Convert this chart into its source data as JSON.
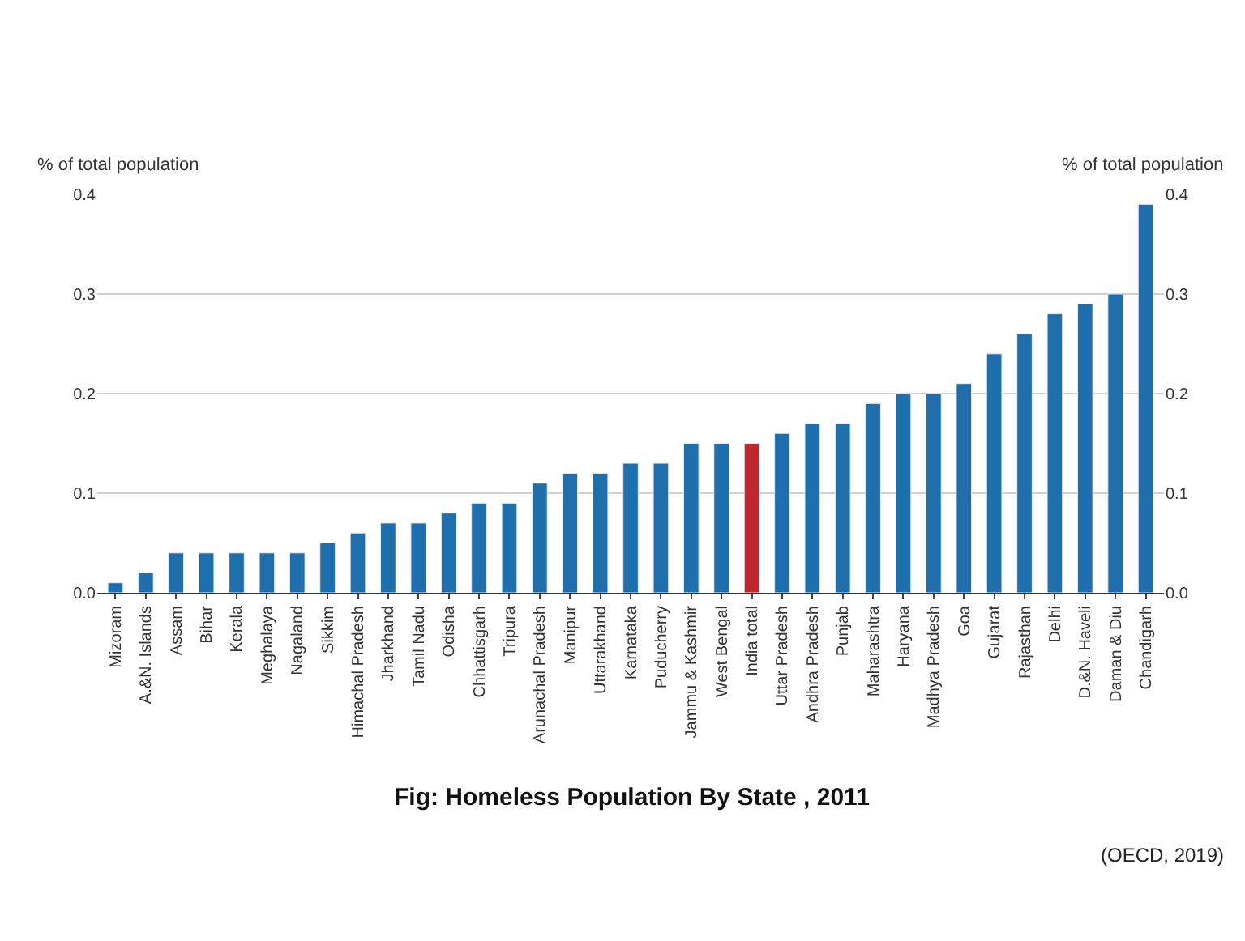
{
  "chart_data": {
    "type": "bar",
    "title": "Fig: Homeless Population By State , 2011",
    "ylabel": "% of total population",
    "y2label": "% of total population",
    "categories": [
      "Mizoram",
      "A.&N. Islands",
      "Assam",
      "Bihar",
      "Kerala",
      "Meghalaya",
      "Nagaland",
      "Sikkim",
      "Himachal Pradesh",
      "Jharkhand",
      "Tamil Nadu",
      "Odisha",
      "Chhattisgarh",
      "Tripura",
      "Arunachal Pradesh",
      "Manipur",
      "Uttarakhand",
      "Karnataka",
      "Puducherry",
      "Jammu & Kashmir",
      "West Bengal",
      "India total",
      "Uttar Pradesh",
      "Andhra Pradesh",
      "Punjab",
      "Maharashtra",
      "Haryana",
      "Madhya Pradesh",
      "Goa",
      "Gujarat",
      "Rajasthan",
      "Delhi",
      "D.&N. Haveli",
      "Daman & Diu",
      "Chandigarh"
    ],
    "values": [
      0.01,
      0.02,
      0.04,
      0.04,
      0.04,
      0.04,
      0.04,
      0.05,
      0.06,
      0.07,
      0.07,
      0.08,
      0.09,
      0.09,
      0.11,
      0.12,
      0.12,
      0.13,
      0.13,
      0.15,
      0.15,
      0.15,
      0.16,
      0.17,
      0.17,
      0.19,
      0.2,
      0.2,
      0.21,
      0.24,
      0.26,
      0.28,
      0.29,
      0.3,
      0.39
    ],
    "colors": [
      "#1f6fad",
      "#1f6fad",
      "#1f6fad",
      "#1f6fad",
      "#1f6fad",
      "#1f6fad",
      "#1f6fad",
      "#1f6fad",
      "#1f6fad",
      "#1f6fad",
      "#1f6fad",
      "#1f6fad",
      "#1f6fad",
      "#1f6fad",
      "#1f6fad",
      "#1f6fad",
      "#1f6fad",
      "#1f6fad",
      "#1f6fad",
      "#1f6fad",
      "#1f6fad",
      "#c0272d",
      "#1f6fad",
      "#1f6fad",
      "#1f6fad",
      "#1f6fad",
      "#1f6fad",
      "#1f6fad",
      "#1f6fad",
      "#1f6fad",
      "#1f6fad",
      "#1f6fad",
      "#1f6fad",
      "#1f6fad",
      "#1f6fad"
    ],
    "ylim": [
      0,
      0.4
    ],
    "yticks": [
      {
        "value": 0,
        "label": "0.0"
      },
      0.1,
      0.2,
      0.3,
      0.4
    ],
    "y2lim": [
      0,
      0.4
    ],
    "y2ticks": [
      {
        "value": 0,
        "label": "0.0"
      },
      0.1,
      0.2,
      0.3,
      0.4
    ],
    "grid": "y",
    "annotations": [
      "(OECD, 2019)"
    ]
  }
}
